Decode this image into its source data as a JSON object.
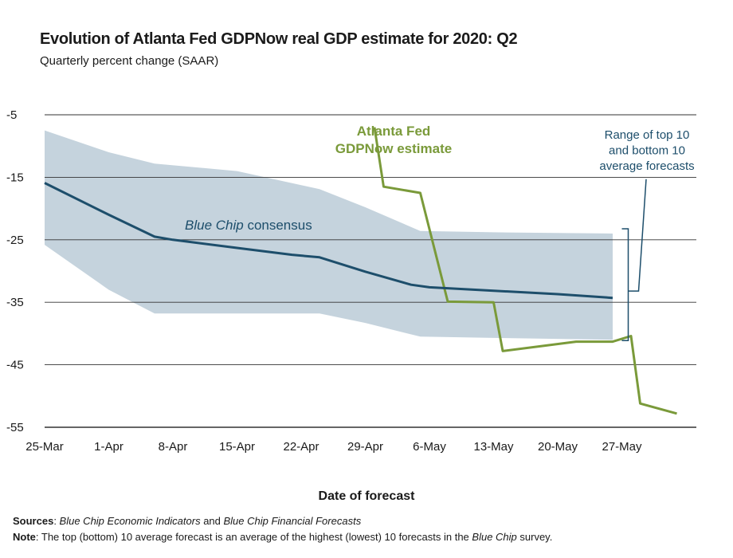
{
  "title": "Evolution of Atlanta Fed GDPNow real GDP estimate for 2020: Q2",
  "subtitle": "Quarterly percent change (SAAR)",
  "xlabel": "Date of forecast",
  "footer": {
    "sources_label": "Sources",
    "sources_text_1": "Blue Chip Economic Indicators",
    "sources_text_2": " and ",
    "sources_text_3": "Blue Chip Financial Forecasts",
    "note_label": "Note",
    "note_text_1": ": The top (bottom) 10 average forecast is an average of the highest (lowest) 10 forecasts in the ",
    "note_text_2": "Blue Chip",
    "note_text_3": " survey."
  },
  "colors": {
    "gdpnow": "#7a9a3a",
    "bluechip": "#1d4e6b",
    "range_fill": "#c5d3dd",
    "grid": "#333333",
    "annotation": "#1d4e6b"
  },
  "chart_data": {
    "type": "line",
    "title": "Evolution of Atlanta Fed GDPNow real GDP estimate for 2020: Q2",
    "subtitle": "Quarterly percent change (SAAR)",
    "xlabel": "Date of forecast",
    "ylabel": "",
    "ylim": [
      -55,
      -5
    ],
    "yticks": [
      -5,
      -15,
      -25,
      -35,
      -45,
      -55
    ],
    "xticks": [
      "25-Mar",
      "1-Apr",
      "8-Apr",
      "15-Apr",
      "22-Apr",
      "29-Apr",
      "6-May",
      "13-May",
      "20-May",
      "27-May"
    ],
    "x_domain": [
      "2020-03-25",
      "2020-06-03"
    ],
    "grid": true,
    "series": [
      {
        "name": "Atlanta Fed GDPNow estimate",
        "kind": "line",
        "x": [
          "2020-04-30",
          "2020-05-01",
          "2020-05-05",
          "2020-05-08",
          "2020-05-13",
          "2020-05-14",
          "2020-05-22",
          "2020-05-26",
          "2020-05-28",
          "2020-05-29",
          "2020-06-02"
        ],
        "values": [
          -7.0,
          -16.5,
          -17.5,
          -34.9,
          -35.0,
          -42.8,
          -41.3,
          -41.3,
          -40.4,
          -51.2,
          -52.8
        ]
      },
      {
        "name": "Blue Chip consensus",
        "kind": "line",
        "x": [
          "2020-03-25",
          "2020-04-01",
          "2020-04-06",
          "2020-04-08",
          "2020-04-15",
          "2020-04-21",
          "2020-04-24",
          "2020-04-29",
          "2020-05-04",
          "2020-05-06",
          "2020-05-20",
          "2020-05-26"
        ],
        "values": [
          -15.9,
          -21.0,
          -24.5,
          -25.0,
          -26.3,
          -27.4,
          -27.8,
          -30.1,
          -32.2,
          -32.6,
          -33.7,
          -34.3
        ]
      },
      {
        "name": "Range of top 10 and bottom 10 average forecasts",
        "kind": "band",
        "x": [
          "2020-03-25",
          "2020-04-01",
          "2020-04-06",
          "2020-04-15",
          "2020-04-24",
          "2020-04-29",
          "2020-05-05",
          "2020-05-13",
          "2020-05-26"
        ],
        "upper": [
          -7.5,
          -11.0,
          -12.8,
          -14.0,
          -16.9,
          -19.8,
          -23.6,
          -23.8,
          -24.0
        ],
        "lower": [
          -25.8,
          -33.0,
          -36.8,
          -36.8,
          -36.8,
          -38.3,
          -40.5,
          -40.7,
          -41.0
        ]
      }
    ],
    "annotations": [
      {
        "lines": [
          "Atlanta Fed",
          "GDPNow estimate"
        ]
      },
      {
        "lines": [
          "Blue Chip consensus"
        ]
      },
      {
        "lines": [
          "Range of top 10",
          "and bottom 10",
          "average forecasts"
        ]
      }
    ]
  }
}
